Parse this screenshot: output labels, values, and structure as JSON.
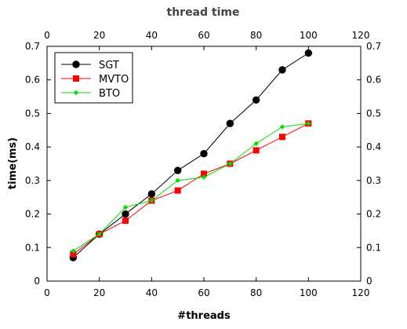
{
  "chart_data": {
    "type": "line",
    "title": "thread time",
    "xlabel": "#threads",
    "ylabel": "time(ms)",
    "xlim": [
      0,
      120
    ],
    "ylim": [
      0,
      0.7
    ],
    "xticks": [
      "0",
      "20",
      "40",
      "60",
      "80",
      "100",
      "120"
    ],
    "yticks": [
      "0",
      "0.1",
      "0.2",
      "0.3",
      "0.4",
      "0.5",
      "0.6",
      "0.7"
    ],
    "grid": false,
    "legend_position": "top-left",
    "x": [
      10,
      20,
      30,
      40,
      50,
      60,
      70,
      80,
      90,
      100
    ],
    "series": [
      {
        "name": "SGT",
        "color": "#000000",
        "marker": "circle",
        "values": [
          0.07,
          0.14,
          0.2,
          0.26,
          0.33,
          0.38,
          0.47,
          0.54,
          0.63,
          0.68
        ]
      },
      {
        "name": "MVTO",
        "color": "#ff0000",
        "marker": "square",
        "values": [
          0.08,
          0.14,
          0.18,
          0.24,
          0.27,
          0.32,
          0.35,
          0.39,
          0.43,
          0.47
        ]
      },
      {
        "name": "BTO",
        "color": "#00dd00",
        "marker": "diamond",
        "values": [
          0.09,
          0.14,
          0.22,
          0.24,
          0.3,
          0.31,
          0.35,
          0.41,
          0.46,
          0.47
        ]
      }
    ]
  }
}
